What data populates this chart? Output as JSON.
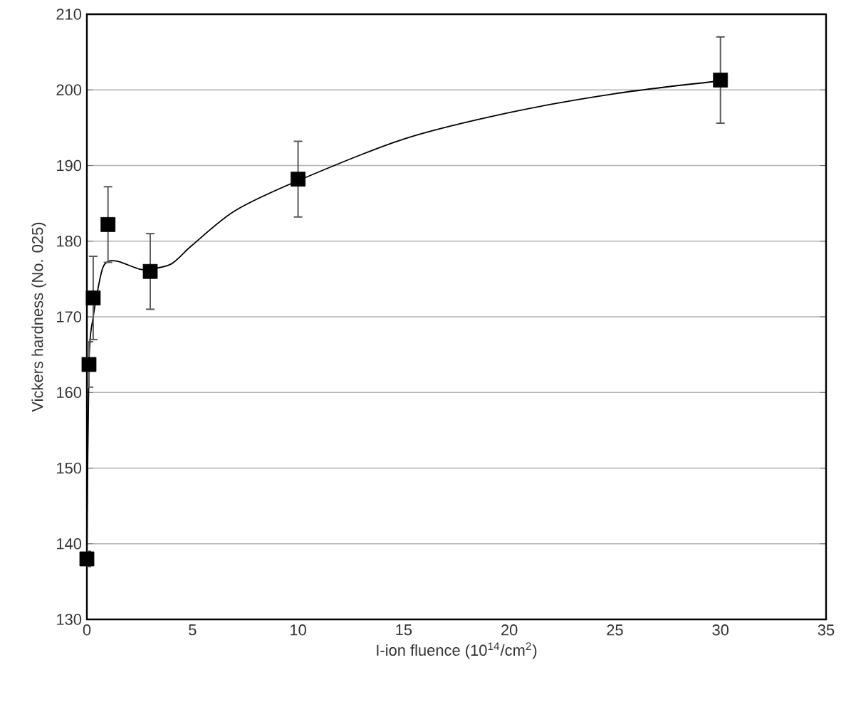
{
  "chart_data": {
    "type": "scatter",
    "xlabel": "I-ion fluence (10$^{14}$/cm$^{2}$)",
    "ylabel": "Vickers hardness (No. 025)",
    "xlim": [
      0,
      35
    ],
    "ylim": [
      130,
      210
    ],
    "xticks": [
      0,
      5,
      10,
      15,
      20,
      25,
      30,
      35
    ],
    "yticks": [
      130,
      140,
      150,
      160,
      170,
      180,
      190,
      200,
      210
    ],
    "grid": "y",
    "series": [
      {
        "marker": "square",
        "color": "#000000",
        "x": [
          0,
          0.1,
          0.3,
          1,
          3,
          10,
          30
        ],
        "values": [
          138,
          163.7,
          172.5,
          182.2,
          176,
          188.2,
          201.3
        ],
        "errors": [
          1,
          3,
          5.5,
          5,
          5,
          5,
          5.7
        ]
      },
      {
        "type": "line",
        "marker": "none",
        "color": "#000000",
        "x": [
          0,
          0.1,
          0.3,
          0.7,
          1,
          1.5,
          2.5,
          3,
          4,
          5,
          7,
          10,
          15,
          20,
          25,
          30
        ],
        "values": [
          138,
          164,
          170,
          176,
          177.3,
          177.3,
          176.3,
          176.3,
          177,
          179.5,
          184,
          188,
          193.5,
          197,
          199.5,
          201.2
        ]
      }
    ]
  }
}
